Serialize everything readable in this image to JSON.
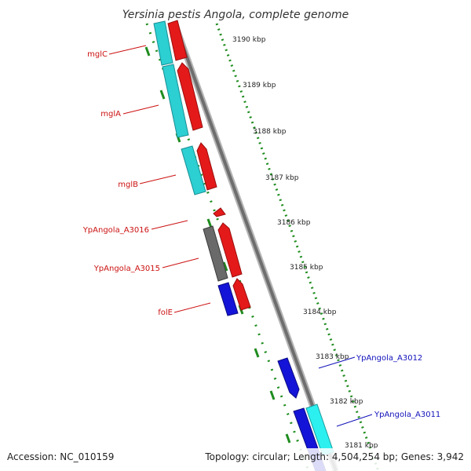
{
  "title": "Yersinia pestis Angola, complete genome",
  "footer": {
    "accession": "Accession: NC_010159",
    "summary": "Topology: circular; Length: 4,504,254 bp; Genes: 3,942"
  },
  "scale_ticks": [
    "3190 kbp",
    "3189 kbp",
    "3188 kbp",
    "3187 kbp",
    "3186 kbp",
    "3185 kbp",
    "3184 kbp",
    "3183 kbp",
    "3182 kbp",
    "3181 kbp"
  ],
  "gene_labels": [
    {
      "text": "mglC",
      "side": "left"
    },
    {
      "text": "mglA",
      "side": "left"
    },
    {
      "text": "mglB",
      "side": "left"
    },
    {
      "text": "YpAngola_A3016",
      "side": "left"
    },
    {
      "text": "YpAngola_A3015",
      "side": "left"
    },
    {
      "text": "folE",
      "side": "left"
    },
    {
      "text": "YpAngola_A3012",
      "side": "right"
    },
    {
      "text": "YpAngola_A3011",
      "side": "right"
    }
  ],
  "colors": {
    "cyan": "#2ccfd2",
    "red": "#e41a1a",
    "blue": "#1414d8",
    "gray": "#6a6a6a",
    "backbone": "#8a8a8a",
    "ruler": "#1e8c1e",
    "label_left": "#cc1111",
    "label_right": "#1111bb",
    "text": "#222222"
  }
}
